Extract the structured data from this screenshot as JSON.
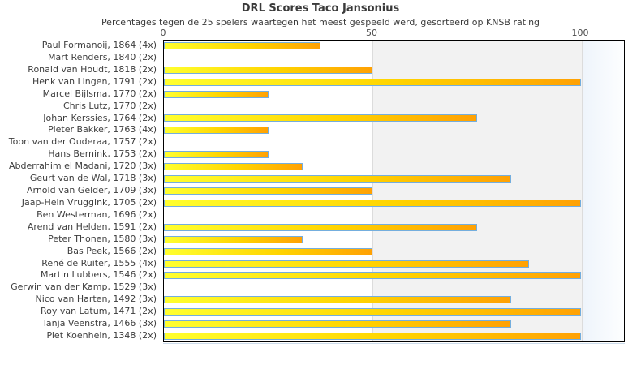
{
  "title": "DRL Scores Taco Jansonius",
  "subtitle": "Percentages tegen de 25 spelers waartegen het meest gespeeld werd, gesorteerd op KNSB rating",
  "chart_data": {
    "type": "bar",
    "orientation": "horizontal",
    "title": "DRL Scores Taco Jansonius",
    "subtitle": "Percentages tegen de 25 spelers waartegen het meest gespeeld werd, gesorteerd op KNSB rating",
    "xlabel": "",
    "ylabel": "",
    "xlim": [
      0,
      110
    ],
    "xticks": [
      0,
      50,
      100
    ],
    "grid": "vertical-light",
    "legend": "none",
    "categories": [
      "Paul Formanoij, 1864 (4x)",
      "Mart Renders, 1840 (2x)",
      "Ronald van Houdt, 1818 (2x)",
      "Henk van Lingen, 1791 (2x)",
      "Marcel Bijlsma, 1770 (2x)",
      "Chris Lutz, 1770 (2x)",
      "Johan Kerssies, 1764 (2x)",
      "Pieter Bakker, 1763 (4x)",
      "Toon van der Ouderaa, 1757 (2x)",
      "Hans Bernink, 1753 (2x)",
      "Abderrahim el Madani, 1720 (3x)",
      "Geurt van de Wal, 1718 (3x)",
      "Arnold van Gelder, 1709 (3x)",
      "Jaap-Hein Vruggink, 1705 (2x)",
      "Ben Westerman, 1696 (2x)",
      "Arend van Helden, 1591 (2x)",
      "Peter Thonen, 1580 (3x)",
      "Bas Peek, 1566 (2x)",
      "René de Ruiter, 1555 (4x)",
      "Martin Lubbers, 1546 (2x)",
      "Gerwin van der Kamp, 1529 (3x)",
      "Nico van Harten, 1492 (3x)",
      "Roy van Latum, 1471 (2x)",
      "Tanja Veenstra, 1466 (3x)",
      "Piet Koenhein, 1348 (2x)"
    ],
    "values": [
      37.5,
      0,
      50,
      100,
      25,
      0,
      75,
      25,
      0,
      25,
      33.3,
      83.3,
      50,
      100,
      0,
      75,
      33.3,
      50,
      87.5,
      100,
      0,
      83.3,
      100,
      83.3,
      100
    ]
  },
  "colors": {
    "bar_gradient_start": "#ffff2e",
    "bar_gradient_mid": "#ffd400",
    "bar_gradient_end": "#ffa104",
    "bar_border": "#74aede",
    "band_50_100": "#f2f2f2",
    "band_over_100": "#eef4fb",
    "plot_border": "#000000",
    "text": "#3a3a3a"
  }
}
